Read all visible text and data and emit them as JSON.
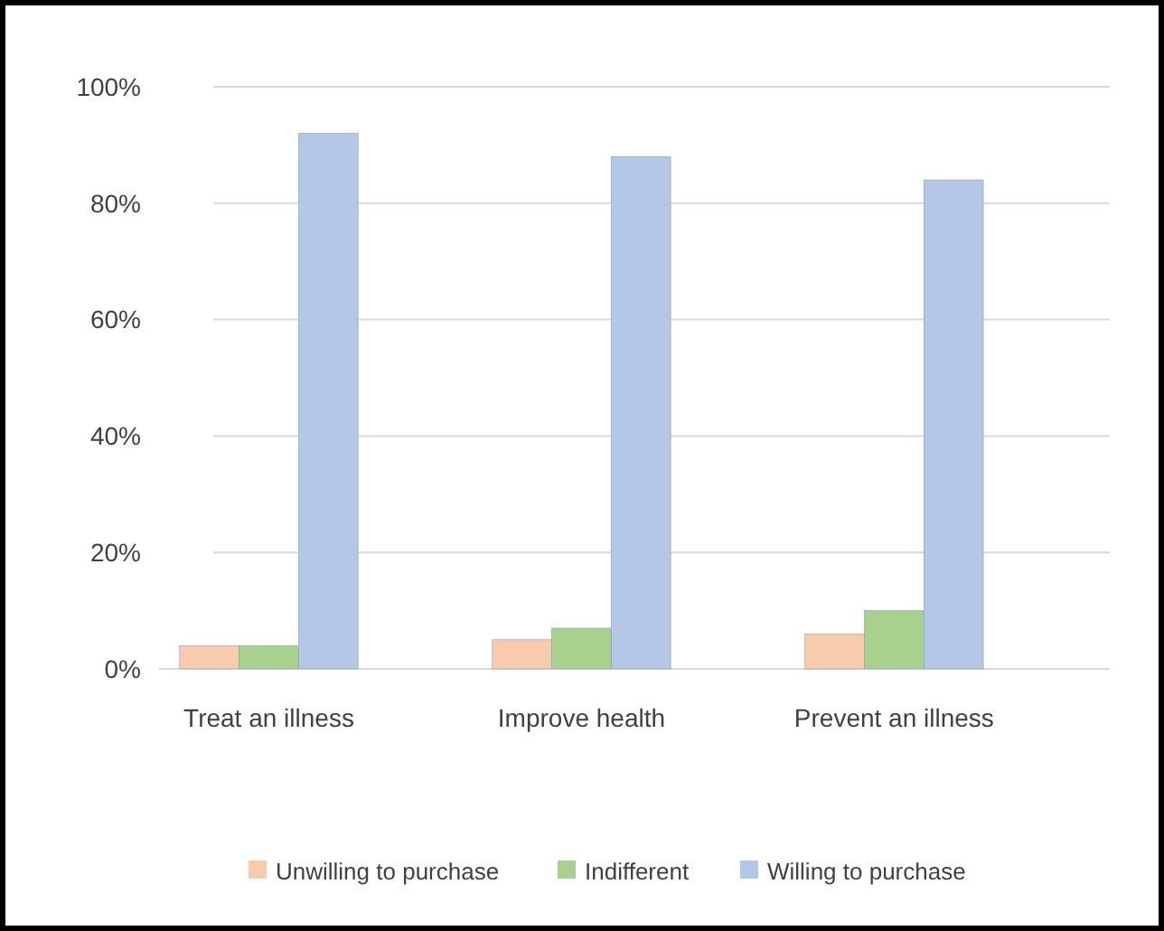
{
  "chart_data": {
    "type": "bar",
    "categories": [
      "Treat an illness",
      "Improve health",
      "Prevent an illness"
    ],
    "series": [
      {
        "name": "Unwilling to purchase",
        "color": "#f8cbad",
        "values": [
          4,
          5,
          6
        ]
      },
      {
        "name": "Indifferent",
        "color": "#a9d18e",
        "values": [
          4,
          7,
          10
        ]
      },
      {
        "name": "Willing to purchase",
        "color": "#b4c7e7",
        "values": [
          92,
          88,
          84
        ]
      }
    ],
    "ylim": [
      0,
      100
    ],
    "yticks": [
      {
        "value": 0,
        "label": "0%"
      },
      {
        "value": 20,
        "label": "20%"
      },
      {
        "value": 40,
        "label": "40%"
      },
      {
        "value": 60,
        "label": "60%"
      },
      {
        "value": 80,
        "label": "80%"
      },
      {
        "value": 100,
        "label": "100%"
      }
    ],
    "grid": "y",
    "legend": "bottom"
  }
}
